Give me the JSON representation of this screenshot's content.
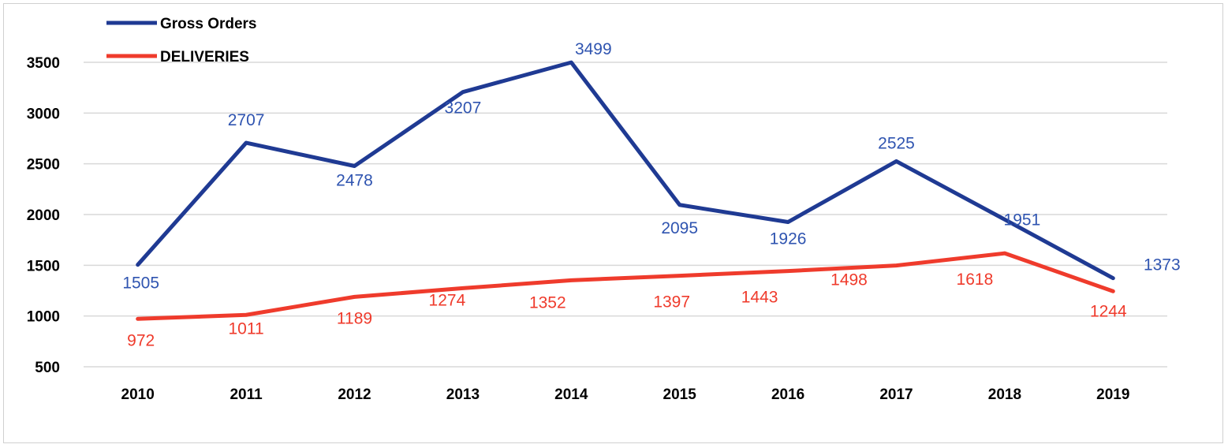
{
  "chart_data": {
    "type": "line",
    "title": "",
    "xlabel": "",
    "ylabel": "",
    "categories": [
      "2010",
      "2011",
      "2012",
      "2013",
      "2014",
      "2015",
      "2016",
      "2017",
      "2018",
      "2019"
    ],
    "ylim": [
      500,
      3500
    ],
    "yticks": [
      500,
      1000,
      1500,
      2000,
      2500,
      3000,
      3500
    ],
    "grid": true,
    "legend_position": "top-left",
    "series": [
      {
        "name": "Gross Orders",
        "color": "#1f3a93",
        "label_color": "#2f54b0",
        "values": [
          1505,
          2707,
          2478,
          3207,
          3499,
          2095,
          1926,
          2525,
          1951,
          1373
        ]
      },
      {
        "name": "DELIVERIES",
        "color": "#ef3b2c",
        "label_color": "#ef3b2c",
        "values": [
          972,
          1011,
          1189,
          1274,
          1352,
          1397,
          1443,
          1498,
          1618,
          1244
        ]
      }
    ]
  }
}
